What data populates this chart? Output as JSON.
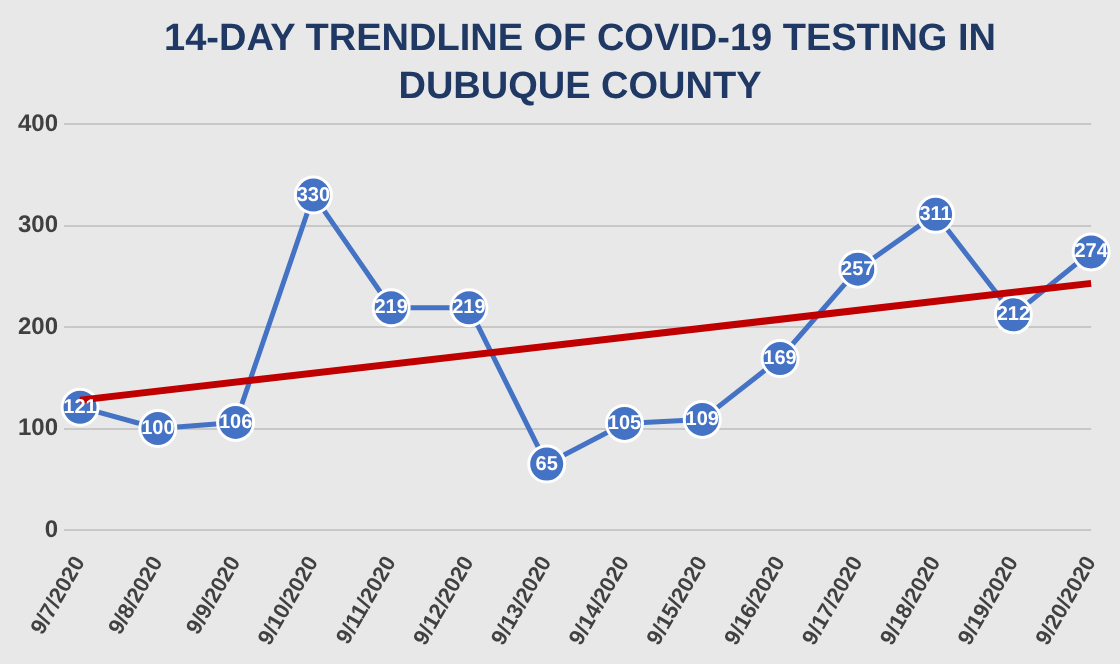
{
  "chart_data": {
    "type": "line",
    "title": "14-DAY TRENDLINE OF COVID-19 TESTING IN DUBUQUE COUNTY",
    "categories": [
      "9/7/2020",
      "9/8/2020",
      "9/9/2020",
      "9/10/2020",
      "9/11/2020",
      "9/12/2020",
      "9/13/2020",
      "9/14/2020",
      "9/15/2020",
      "9/16/2020",
      "9/17/2020",
      "9/18/2020",
      "9/19/2020",
      "9/20/2020"
    ],
    "series": [
      {
        "color": "#4472c4",
        "values": [
          121,
          100,
          106,
          330,
          219,
          219,
          65,
          105,
          109,
          169,
          257,
          311,
          212,
          274
        ],
        "marker": "circle",
        "value_labels": [
          "121",
          "100",
          "106",
          "330",
          "219",
          "219",
          "65",
          "105",
          "109",
          "169",
          "257",
          "311",
          "212",
          "274"
        ]
      },
      {
        "type": "line",
        "color": "#c00000",
        "x": [
          "9/7/2020",
          "9/20/2020"
        ],
        "values": [
          128,
          243
        ],
        "marker": "none"
      }
    ],
    "ylim": [
      0,
      400
    ],
    "yticks": [
      0,
      100,
      200,
      300,
      400
    ],
    "grid": "y",
    "legend": false
  }
}
